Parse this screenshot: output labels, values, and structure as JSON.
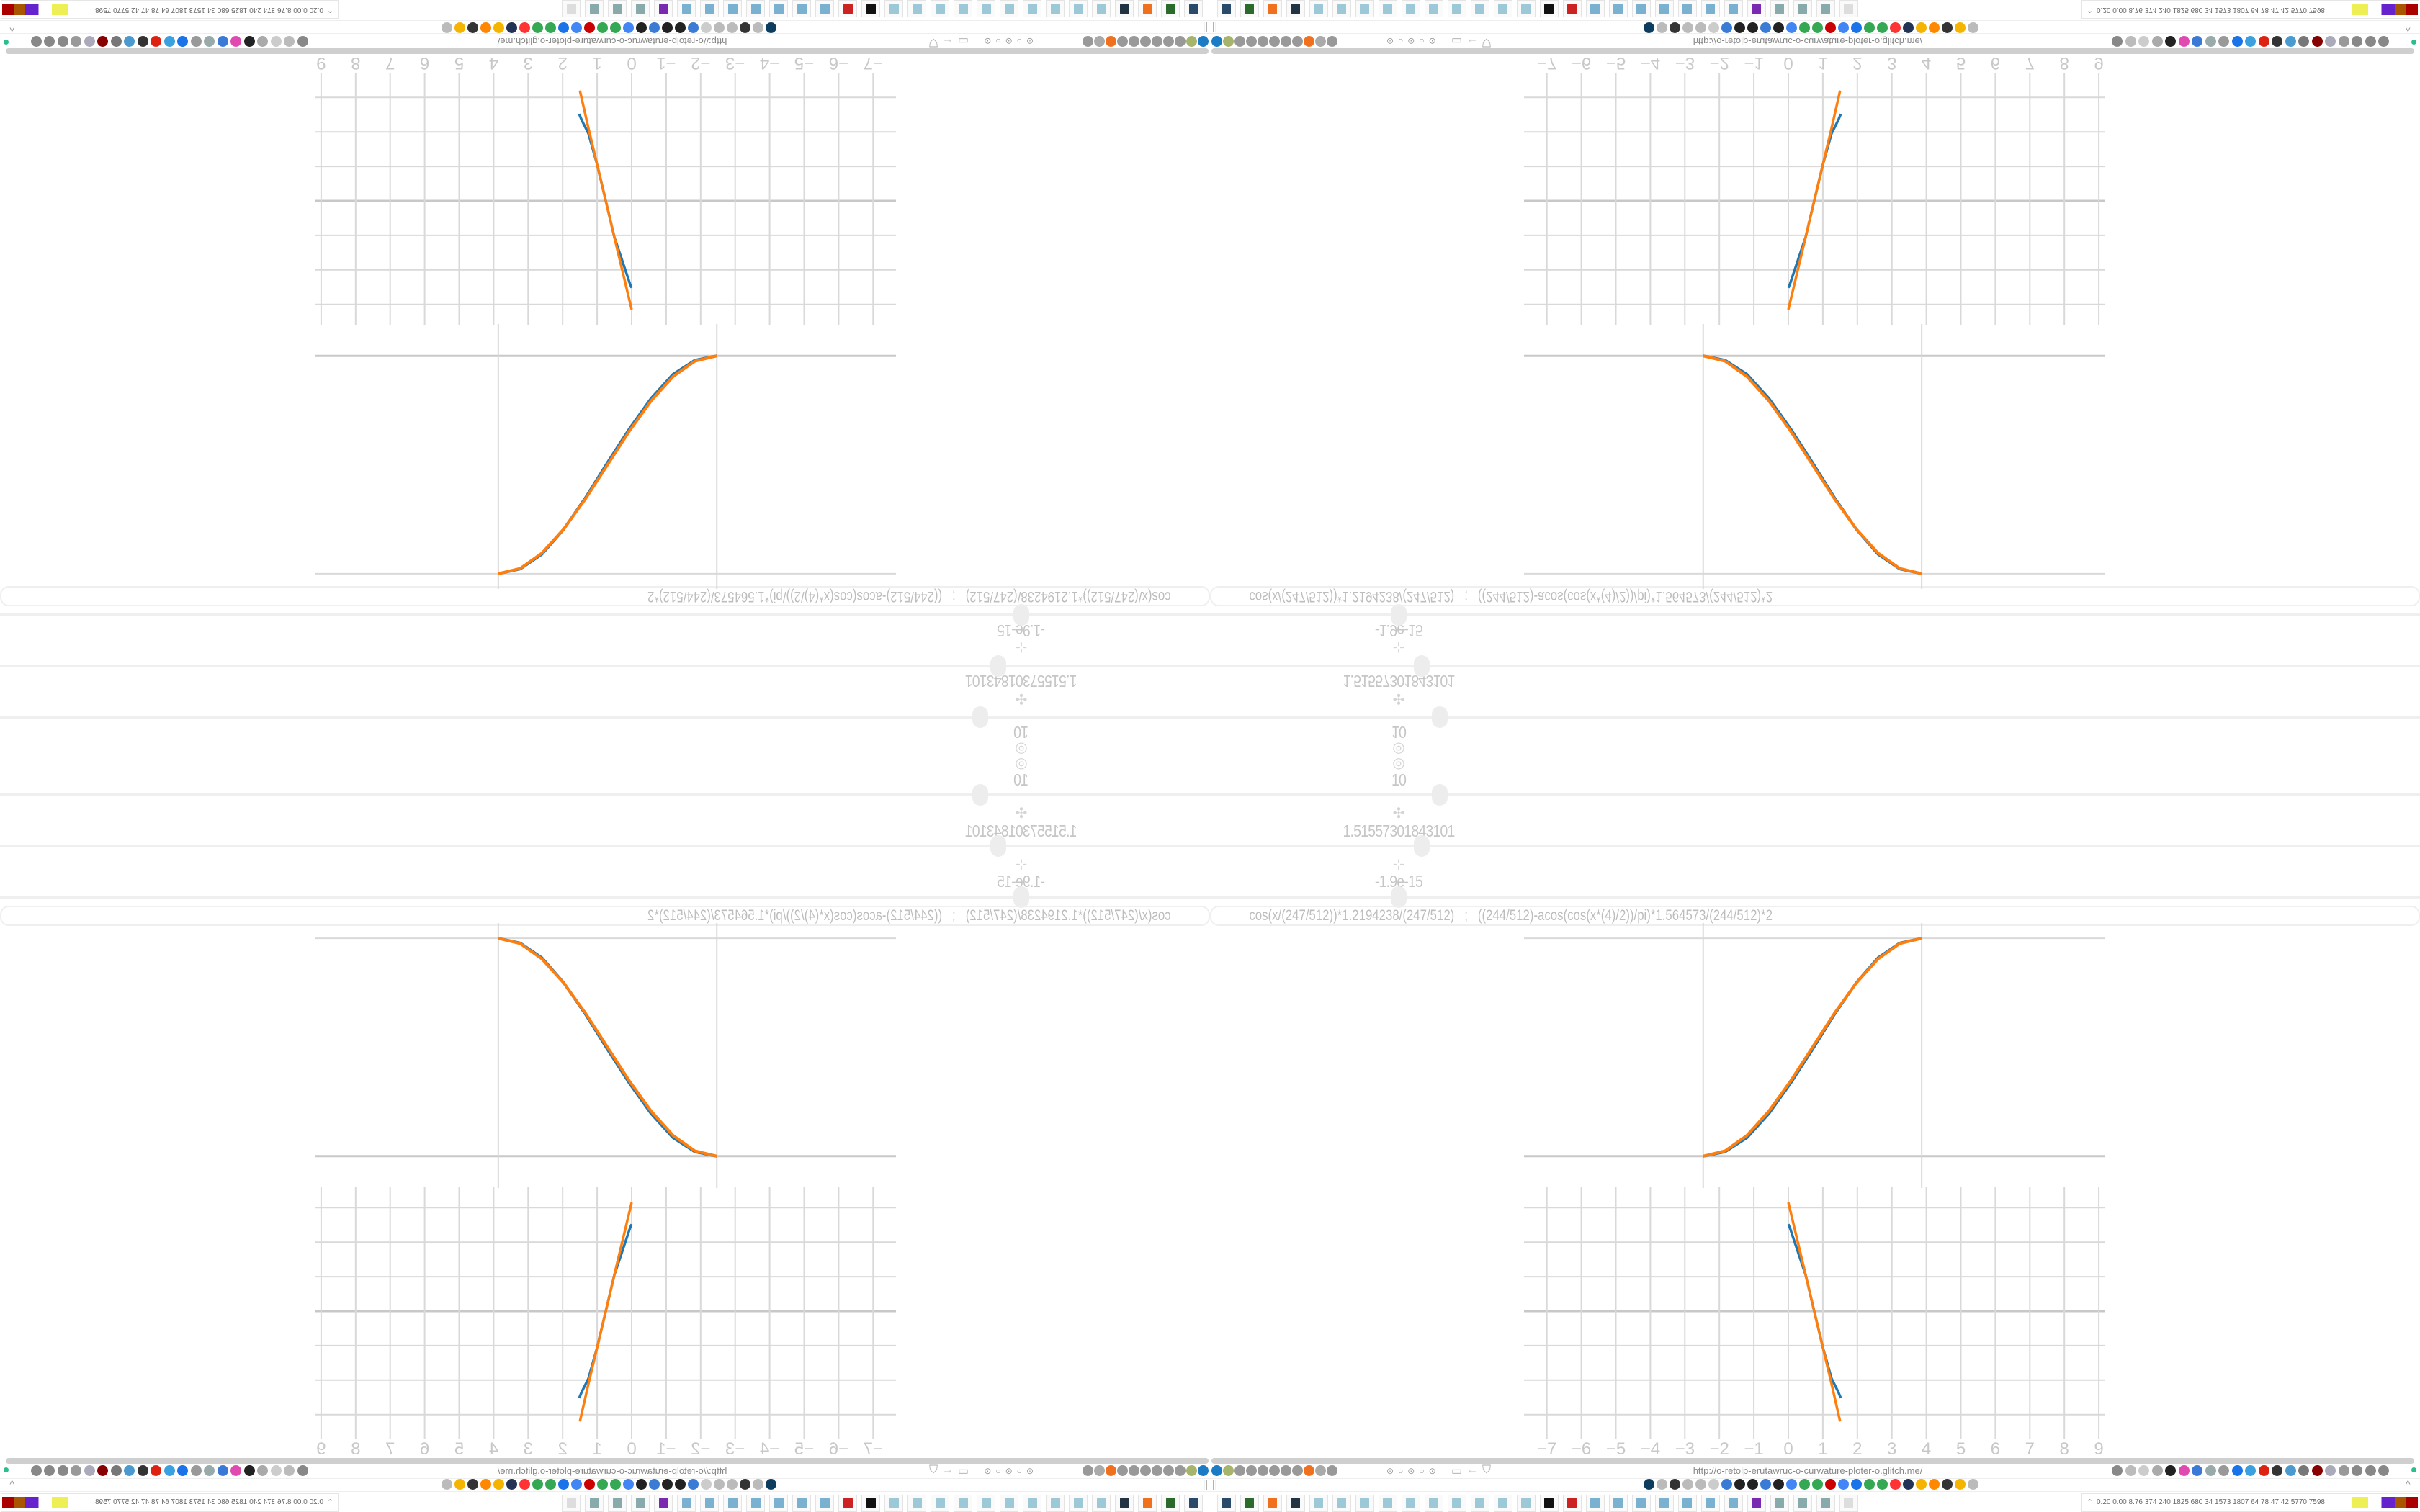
{
  "browser": {
    "url": "http://o-retolp-erutawruc-o-curwature-ploter-o.glitch.me/",
    "bookmarks_handle": "||",
    "toolbar_left_icons": [
      {
        "name": "filter-icon",
        "color": "#1b7bc4"
      },
      {
        "name": "extension-icon",
        "color": "#a7b46b"
      },
      {
        "name": "globe-icon",
        "color": "#999"
      },
      {
        "name": "globe-icon",
        "color": "#999"
      },
      {
        "name": "headphones-icon",
        "color": "#999"
      },
      {
        "name": "headphones-icon",
        "color": "#999"
      },
      {
        "name": "globe-icon",
        "color": "#999"
      },
      {
        "name": "wrench-icon",
        "color": "#999"
      },
      {
        "name": "firefox-icon",
        "color": "#f0701e"
      },
      {
        "name": "gear-icon",
        "color": "#aaa"
      },
      {
        "name": "globe-icon",
        "color": "#999"
      }
    ],
    "toolbar_right_icons": [
      {
        "name": "translate-icon",
        "color": "#888"
      },
      {
        "name": "star-icon",
        "color": "#bbb"
      },
      {
        "name": "forward-icon",
        "color": "#ccc"
      },
      {
        "name": "reload-icon",
        "color": "#aaa"
      },
      {
        "name": "download-icon",
        "color": "#222"
      },
      {
        "name": "color-picker-icon",
        "color": "#e04ab0"
      },
      {
        "name": "translate-icon",
        "color": "#3b79d6"
      },
      {
        "name": "mouse-icon",
        "color": "#9aa"
      },
      {
        "name": "gear-icon",
        "color": "#999"
      },
      {
        "name": "add-icon",
        "color": "#1a73e8"
      },
      {
        "name": "upload-icon",
        "color": "#3aa0e0"
      },
      {
        "name": "record-icon",
        "color": "#d21"
      },
      {
        "name": "trash-icon",
        "color": "#333"
      },
      {
        "name": "share-icon",
        "color": "#4a9ad0"
      },
      {
        "name": "archive-icon",
        "color": "#777"
      },
      {
        "name": "ublock-icon",
        "color": "#800"
      },
      {
        "name": "shield-icon",
        "color": "#aab"
      },
      {
        "name": "globe-icon",
        "color": "#999"
      },
      {
        "name": "puzzle-icon",
        "color": "#888"
      },
      {
        "name": "wrench-icon",
        "color": "#888"
      },
      {
        "name": "settings-icon",
        "color": "#888"
      }
    ],
    "bookmark_icons": [
      {
        "name": "bookmark-icon",
        "color": "#0c3d5e"
      },
      {
        "name": "mute-icon",
        "color": "#bbb"
      },
      {
        "name": "cc-icon",
        "color": "#333"
      },
      {
        "name": "mute-icon",
        "color": "#bbb"
      },
      {
        "name": "mute-icon",
        "color": "#bbb"
      },
      {
        "name": "mute-icon",
        "color": "#ccc"
      },
      {
        "name": "globe-icon",
        "color": "#3a7bd5"
      },
      {
        "name": "wikipedia-icon",
        "color": "#222"
      },
      {
        "name": "wave-icon",
        "color": "#222"
      },
      {
        "name": "globe-icon",
        "color": "#3a7bd5"
      },
      {
        "name": "museum-icon",
        "color": "#222"
      },
      {
        "name": "translate-icon",
        "color": "#4285f4"
      },
      {
        "name": "google-icon",
        "color": "#34a853"
      },
      {
        "name": "google-icon",
        "color": "#34a853"
      },
      {
        "name": "flower-icon",
        "color": "#c00"
      },
      {
        "name": "google-icon",
        "color": "#4285f4"
      },
      {
        "name": "drop-icon",
        "color": "#1a73e8"
      },
      {
        "name": "google-icon",
        "color": "#34a853"
      },
      {
        "name": "google-icon",
        "color": "#34a853"
      },
      {
        "name": "yandex-icon",
        "color": "#f33"
      },
      {
        "name": "grid-icon",
        "color": "#235"
      },
      {
        "name": "image-icon",
        "color": "#f5b400"
      },
      {
        "name": "sun-icon",
        "color": "#f80"
      },
      {
        "name": "cc-icon",
        "color": "#333"
      },
      {
        "name": "image-icon",
        "color": "#f5b400"
      },
      {
        "name": "hourglass-icon",
        "color": "#bbb"
      }
    ],
    "tray_text": "0.20 0.00 8.76 374  240 1825 680  34  1573 1807  64   78   47   42  5770 7598",
    "taskbar_icons": [
      {
        "name": "monitor-icon",
        "color": "#2a4a6a"
      },
      {
        "name": "terminal-icon",
        "color": "#2a6a2a"
      },
      {
        "name": "firefox-icon",
        "color": "#f0701e"
      },
      {
        "name": "floppy-icon",
        "color": "#234"
      },
      {
        "name": "notepad-icon",
        "color": "#9cc8d8"
      },
      {
        "name": "notepad-icon",
        "color": "#9cc8d8"
      },
      {
        "name": "notepad-icon",
        "color": "#9cc8d8"
      },
      {
        "name": "notepad-icon",
        "color": "#9cc8d8"
      },
      {
        "name": "notepad-icon",
        "color": "#9cc8d8"
      },
      {
        "name": "notepad-icon",
        "color": "#9cc8d8"
      },
      {
        "name": "notepad-icon",
        "color": "#9cc8d8"
      },
      {
        "name": "notepad-icon",
        "color": "#9cc8d8"
      },
      {
        "name": "notepad-icon",
        "color": "#9cc8d8"
      },
      {
        "name": "notepad-icon",
        "color": "#9cc8d8"
      },
      {
        "name": "inkscape-icon",
        "color": "#111"
      },
      {
        "name": "app-icon",
        "color": "#c22"
      },
      {
        "name": "calculator-icon",
        "color": "#7ab0d0"
      },
      {
        "name": "calculator-icon",
        "color": "#7ab0d0"
      },
      {
        "name": "calculator-icon",
        "color": "#7ab0d0"
      },
      {
        "name": "calculator-icon",
        "color": "#7ab0d0"
      },
      {
        "name": "calculator-icon",
        "color": "#7ab0d0"
      },
      {
        "name": "calculator-icon",
        "color": "#7ab0d0"
      },
      {
        "name": "calculator-icon",
        "color": "#7ab0d0"
      },
      {
        "name": "owl-icon",
        "color": "#7a2ab0"
      },
      {
        "name": "script-icon",
        "color": "#8aa"
      },
      {
        "name": "script-icon",
        "color": "#8aa"
      },
      {
        "name": "script-icon",
        "color": "#8aa"
      },
      {
        "name": "script-icon",
        "color": "#ddd"
      }
    ]
  },
  "controls": [
    {
      "icon": "target-icon",
      "glyph": "◎",
      "value": "10",
      "slider_fraction": 0.19
    },
    {
      "icon": "move-icon",
      "glyph": "✣",
      "value": "1.51557301843101",
      "slider_fraction": 0.175
    },
    {
      "icon": "pin-icon",
      "glyph": "⊹",
      "value": "-1.9e-15",
      "slider_fraction": 0.156
    }
  ],
  "formula": "cos(x/(247/512))*1.2194238/(247/512)   ;   ((244/512)-acos(cos(x*(4)/2))/pi)*1.564573/(244/512)*2",
  "colors": {
    "series_a": "#1f77b4",
    "series_b": "#ff7f0e",
    "grid": "#d9d9d9",
    "axis": "#c8c8c8"
  },
  "chart_data": [
    {
      "type": "line",
      "xlim": [
        -0.82,
        1.84
      ],
      "ylim": [
        -0.08,
        1.06
      ],
      "grid": true,
      "x_ticks": [
        "0",
        "1"
      ],
      "series": [
        {
          "color": "#1f77b4",
          "x": [
            0,
            0.1,
            0.2,
            0.3,
            0.4,
            0.5,
            0.6,
            0.7,
            0.8,
            0.9,
            1
          ],
          "y": [
            0,
            0.02,
            0.085,
            0.195,
            0.335,
            0.49,
            0.65,
            0.795,
            0.91,
            0.978,
            1
          ]
        },
        {
          "color": "#ff7f0e",
          "x": [
            0,
            0.1,
            0.2,
            0.3,
            0.4,
            0.5,
            0.6,
            0.7,
            0.8,
            0.9,
            1
          ],
          "y": [
            0,
            0.024,
            0.095,
            0.206,
            0.345,
            0.5,
            0.655,
            0.794,
            0.905,
            0.976,
            1
          ]
        }
      ]
    },
    {
      "type": "line",
      "xlim": [
        -7.7,
        9.2
      ],
      "ylim": [
        -3.7,
        3.6
      ],
      "grid": true,
      "x_ticks": [
        "−7",
        "−6",
        "−5",
        "−4",
        "−3",
        "−2",
        "−1",
        "0",
        "1",
        "2",
        "3",
        "4",
        "5",
        "6",
        "7",
        "8",
        "9"
      ],
      "series": [
        {
          "color": "#1f77b4",
          "x": [
            0,
            0.05,
            0.25,
            0.5,
            0.75,
            1,
            1.25,
            1.45,
            1.52
          ],
          "y": [
            2.52,
            2.4,
            1.8,
            1.05,
            0,
            -1.05,
            -1.95,
            -2.35,
            -2.52
          ]
        },
        {
          "color": "#ff7f0e",
          "x": [
            0,
            0.25,
            0.5,
            0.75,
            1,
            1.25,
            1.5
          ],
          "y": [
            3.15,
            2.1,
            1.05,
            0,
            -1.05,
            -2.1,
            -3.2
          ]
        }
      ]
    }
  ]
}
